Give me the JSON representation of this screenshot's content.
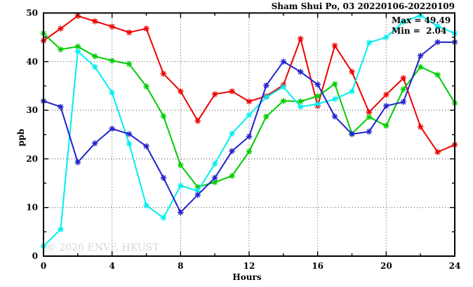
{
  "title": "Sham Shui Po, 03 20220106-20220109",
  "annotation": {
    "max_label": "Max = 49.49",
    "min_label": "Min =  2.04"
  },
  "watermark": "© 2026 ENVF, HKUST",
  "axes": {
    "x_label": "Hours",
    "y_label": "ppb"
  },
  "chart_data": {
    "type": "line",
    "title": "Sham Shui Po, 03 20220106-20220109",
    "xlabel": "Hours",
    "ylabel": "ppb",
    "xlim": [
      0,
      24
    ],
    "ylim": [
      0,
      50
    ],
    "xticks": [
      0,
      4,
      8,
      12,
      16,
      20,
      24
    ],
    "x_minor_step": 2,
    "yticks": [
      0,
      10,
      20,
      30,
      40,
      50
    ],
    "y_minor_step": 5,
    "grid": true,
    "legend_position": "none",
    "max_value": 49.49,
    "min_value": 2.04,
    "x": [
      0,
      1,
      2,
      3,
      4,
      5,
      6,
      7,
      8,
      9,
      10,
      11,
      12,
      13,
      14,
      15,
      16,
      17,
      18,
      19,
      20,
      21,
      22,
      23,
      24
    ],
    "series": [
      {
        "name": "series-red",
        "color": "#ee0000",
        "values": [
          44.3,
          46.8,
          49.4,
          48.3,
          47.2,
          46.0,
          46.8,
          37.5,
          33.9,
          27.8,
          33.3,
          33.9,
          31.8,
          32.9,
          35.2,
          44.7,
          30.9,
          43.3,
          37.9,
          29.6,
          33.2,
          36.6,
          26.6,
          21.4,
          22.9
        ]
      },
      {
        "name": "series-green",
        "color": "#00cc00",
        "values": [
          45.8,
          42.5,
          43.1,
          41.1,
          40.2,
          39.5,
          34.9,
          28.8,
          18.7,
          14.2,
          15.2,
          16.5,
          21.5,
          28.7,
          31.9,
          31.8,
          32.9,
          35.4,
          25.2,
          28.6,
          26.8,
          34.3,
          38.9,
          37.3,
          31.5
        ]
      },
      {
        "name": "series-cyan",
        "color": "#00eeee",
        "values": [
          2.04,
          5.5,
          42.1,
          38.9,
          33.6,
          23.1,
          10.4,
          7.9,
          14.5,
          13.4,
          19.0,
          25.2,
          29.0,
          32.7,
          34.8,
          30.7,
          31.3,
          32.3,
          33.9,
          43.9,
          45.0,
          48.2,
          49.49,
          47.3,
          45.8
        ]
      },
      {
        "name": "series-blue",
        "color": "#2222cc",
        "values": [
          31.9,
          30.7,
          19.3,
          23.2,
          26.2,
          25.1,
          22.6,
          16.1,
          9.0,
          12.6,
          16.1,
          21.6,
          24.6,
          35.1,
          40.0,
          37.9,
          35.3,
          28.7,
          25.1,
          25.6,
          30.9,
          31.7,
          41.2,
          44.0,
          44.0
        ]
      }
    ]
  }
}
